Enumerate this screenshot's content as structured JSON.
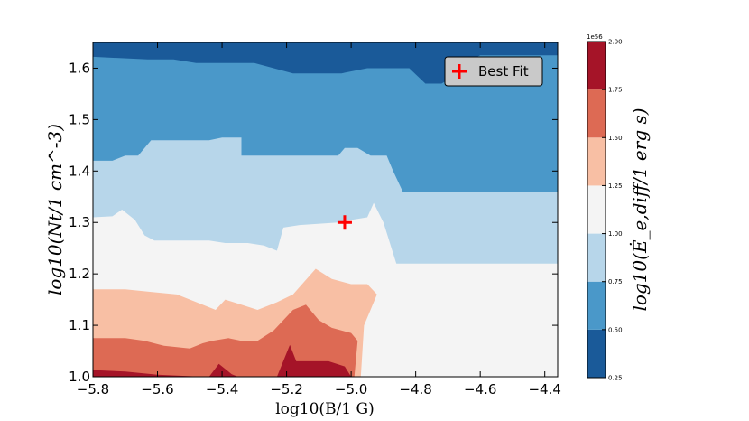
{
  "chart_data": {
    "type": "contour",
    "xlabel": "log10(B/1 G)",
    "ylabel": "log10(Nt/1 cm^-3)",
    "colorbar_label": "log10(Ė_e,diff/1 erg s)",
    "colorbar_scale_label": "1e56",
    "xlim": [
      -5.8,
      -4.36
    ],
    "ylim": [
      1.0,
      1.65
    ],
    "x_ticks": [
      "−5.8",
      "−5.6",
      "−5.4",
      "−5.2",
      "−5.0",
      "−4.8",
      "−4.6",
      "−4.4"
    ],
    "x_tick_values": [
      -5.8,
      -5.6,
      -5.4,
      -5.2,
      -5.0,
      -4.8,
      -4.6,
      -4.4
    ],
    "y_ticks": [
      "1.0",
      "1.1",
      "1.2",
      "1.3",
      "1.4",
      "1.5",
      "1.6"
    ],
    "y_tick_values": [
      1.0,
      1.1,
      1.2,
      1.3,
      1.4,
      1.5,
      1.6
    ],
    "levels": [
      0.25,
      0.5,
      0.75,
      1.0,
      1.25,
      1.5,
      1.75,
      2.0
    ],
    "level_labels": [
      "0.25",
      "0.50",
      "0.75",
      "1.00",
      "1.25",
      "1.50",
      "1.75",
      "2.00"
    ],
    "level_colors": [
      "#1a5a99",
      "#4a98c9",
      "#b7d6ea",
      "#f4f4f4",
      "#f8bfa4",
      "#dd6a54",
      "#a51428"
    ],
    "regions": [
      {
        "level_index": 1,
        "boundary": [
          [
            -5.8,
            1.66
          ],
          [
            -4.36,
            1.66
          ],
          [
            -4.36,
            1.0
          ],
          [
            -5.8,
            1.0
          ]
        ]
      },
      {
        "level_index": 0,
        "boundary": [
          [
            -5.8,
            1.66
          ],
          [
            -4.36,
            1.66
          ],
          [
            -4.36,
            1.625
          ],
          [
            -4.6,
            1.625
          ],
          [
            -4.65,
            1.61
          ],
          [
            -4.68,
            1.585
          ],
          [
            -4.72,
            1.57
          ],
          [
            -4.77,
            1.57
          ],
          [
            -4.82,
            1.6
          ],
          [
            -4.95,
            1.6
          ],
          [
            -5.03,
            1.59
          ],
          [
            -5.18,
            1.59
          ],
          [
            -5.3,
            1.61
          ],
          [
            -5.48,
            1.61
          ],
          [
            -5.55,
            1.617
          ],
          [
            -5.63,
            1.617
          ],
          [
            -5.8,
            1.622
          ]
        ]
      },
      {
        "level_index": 2,
        "boundary": [
          [
            -5.8,
            1.42
          ],
          [
            -5.74,
            1.42
          ],
          [
            -5.7,
            1.43
          ],
          [
            -5.66,
            1.43
          ],
          [
            -5.62,
            1.46
          ],
          [
            -5.44,
            1.46
          ],
          [
            -5.4,
            1.465
          ],
          [
            -5.34,
            1.465
          ],
          [
            -5.34,
            1.43
          ],
          [
            -5.21,
            1.43
          ],
          [
            -5.14,
            1.43
          ],
          [
            -5.04,
            1.43
          ],
          [
            -5.02,
            1.445
          ],
          [
            -4.98,
            1.445
          ],
          [
            -4.94,
            1.43
          ],
          [
            -4.89,
            1.43
          ],
          [
            -4.87,
            1.4
          ],
          [
            -4.84,
            1.36
          ],
          [
            -4.36,
            1.36
          ],
          [
            -4.36,
            1.0
          ],
          [
            -5.8,
            1.0
          ]
        ]
      },
      {
        "level_index": 3,
        "boundary": [
          [
            -5.8,
            1.31
          ],
          [
            -5.74,
            1.312
          ],
          [
            -5.71,
            1.325
          ],
          [
            -5.67,
            1.305
          ],
          [
            -5.64,
            1.275
          ],
          [
            -5.61,
            1.265
          ],
          [
            -5.44,
            1.265
          ],
          [
            -5.39,
            1.26
          ],
          [
            -5.32,
            1.26
          ],
          [
            -5.27,
            1.255
          ],
          [
            -5.23,
            1.245
          ],
          [
            -5.21,
            1.29
          ],
          [
            -5.16,
            1.295
          ],
          [
            -5.04,
            1.3
          ],
          [
            -5.0,
            1.305
          ],
          [
            -4.95,
            1.31
          ],
          [
            -4.93,
            1.338
          ],
          [
            -4.9,
            1.3
          ],
          [
            -4.87,
            1.24
          ],
          [
            -4.86,
            1.22
          ],
          [
            -4.36,
            1.22
          ],
          [
            -4.36,
            1.0
          ],
          [
            -5.8,
            1.0
          ]
        ]
      },
      {
        "level_index": 4,
        "boundary": [
          [
            -5.8,
            1.17
          ],
          [
            -5.7,
            1.17
          ],
          [
            -5.62,
            1.165
          ],
          [
            -5.54,
            1.16
          ],
          [
            -5.46,
            1.14
          ],
          [
            -5.42,
            1.13
          ],
          [
            -5.39,
            1.15
          ],
          [
            -5.34,
            1.14
          ],
          [
            -5.29,
            1.13
          ],
          [
            -5.23,
            1.145
          ],
          [
            -5.18,
            1.16
          ],
          [
            -5.11,
            1.21
          ],
          [
            -5.06,
            1.19
          ],
          [
            -5.0,
            1.18
          ],
          [
            -4.95,
            1.18
          ],
          [
            -4.92,
            1.16
          ],
          [
            -4.94,
            1.13
          ],
          [
            -4.96,
            1.1
          ],
          [
            -4.97,
            1.0
          ],
          [
            -5.8,
            1.0
          ]
        ]
      },
      {
        "level_index": 5,
        "boundary": [
          [
            -5.8,
            1.075
          ],
          [
            -5.7,
            1.075
          ],
          [
            -5.64,
            1.07
          ],
          [
            -5.58,
            1.06
          ],
          [
            -5.5,
            1.055
          ],
          [
            -5.46,
            1.065
          ],
          [
            -5.43,
            1.07
          ],
          [
            -5.38,
            1.075
          ],
          [
            -5.34,
            1.07
          ],
          [
            -5.29,
            1.07
          ],
          [
            -5.24,
            1.09
          ],
          [
            -5.18,
            1.13
          ],
          [
            -5.14,
            1.14
          ],
          [
            -5.1,
            1.11
          ],
          [
            -5.06,
            1.095
          ],
          [
            -5.0,
            1.085
          ],
          [
            -4.98,
            1.07
          ],
          [
            -4.99,
            1.0
          ],
          [
            -5.8,
            1.0
          ]
        ]
      },
      {
        "level_index": 6,
        "boundary": [
          [
            -5.8,
            1.013
          ],
          [
            -5.7,
            1.01
          ],
          [
            -5.6,
            1.004
          ],
          [
            -5.46,
            1.0
          ],
          [
            -5.8,
            1.0
          ]
        ]
      },
      {
        "level_index": 6,
        "boundary": [
          [
            -5.44,
            1.0
          ],
          [
            -5.41,
            1.025
          ],
          [
            -5.37,
            1.005
          ],
          [
            -5.35,
            1.0
          ]
        ]
      },
      {
        "level_index": 6,
        "boundary": [
          [
            -5.23,
            1.0
          ],
          [
            -5.19,
            1.062
          ],
          [
            -5.17,
            1.03
          ],
          [
            -5.15,
            1.03
          ],
          [
            -5.07,
            1.03
          ],
          [
            -5.02,
            1.02
          ],
          [
            -5.0,
            1.0
          ]
        ]
      },
      {
        "level_index": 3,
        "boundary": [
          [
            -4.36,
            1.0
          ],
          [
            -4.36,
            1.04
          ],
          [
            -4.46,
            1.03
          ],
          [
            -4.54,
            1.02
          ],
          [
            -4.6,
            1.01
          ],
          [
            -4.66,
            1.0
          ]
        ]
      }
    ],
    "series": [
      {
        "name": "Best Fit",
        "marker": "+",
        "color": "#ff0000",
        "x": [
          -5.02
        ],
        "y": [
          1.3
        ]
      }
    ],
    "legend_position": "top-right",
    "grid": false
  }
}
